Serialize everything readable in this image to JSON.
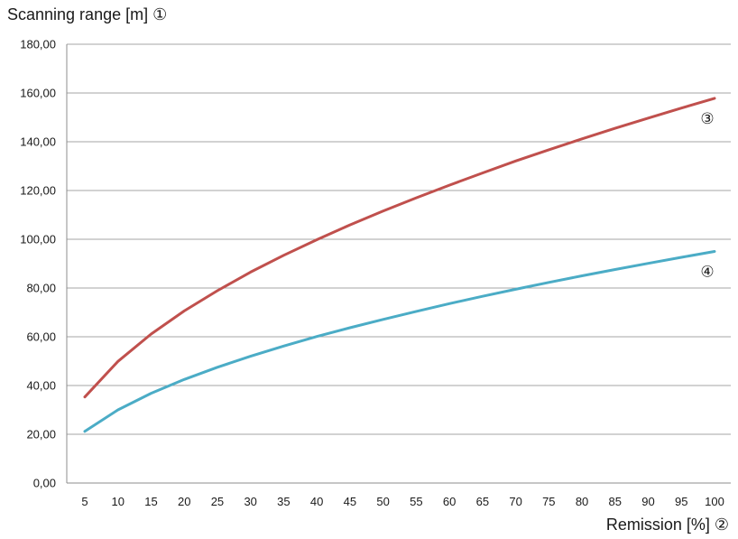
{
  "chart_data": {
    "type": "line",
    "ylabel": "Scanning range [m] ①",
    "xlabel": "Remission [%] ②",
    "x": [
      5,
      10,
      15,
      20,
      25,
      30,
      35,
      40,
      45,
      50,
      55,
      60,
      65,
      70,
      75,
      80,
      85,
      90,
      95,
      100
    ],
    "ylim": [
      0,
      180
    ],
    "yticks": [
      "0,00",
      "20,00",
      "40,00",
      "60,00",
      "80,00",
      "100,00",
      "120,00",
      "140,00",
      "160,00",
      "180,00"
    ],
    "grid": true,
    "series": [
      {
        "name": "③",
        "color": "#c0504d",
        "values": [
          35.3,
          49.9,
          61.1,
          70.6,
          78.9,
          86.5,
          93.4,
          99.8,
          105.9,
          111.6,
          117.0,
          122.2,
          127.2,
          132.1,
          136.7,
          141.2,
          145.5,
          149.7,
          153.8,
          157.8
        ]
      },
      {
        "name": "④",
        "color": "#4bacc6",
        "values": [
          21.2,
          30.0,
          36.8,
          42.5,
          47.5,
          52.0,
          56.2,
          60.1,
          63.7,
          67.1,
          70.4,
          73.6,
          76.6,
          79.5,
          82.3,
          85.0,
          87.6,
          90.1,
          92.6,
          95.0
        ]
      }
    ]
  }
}
